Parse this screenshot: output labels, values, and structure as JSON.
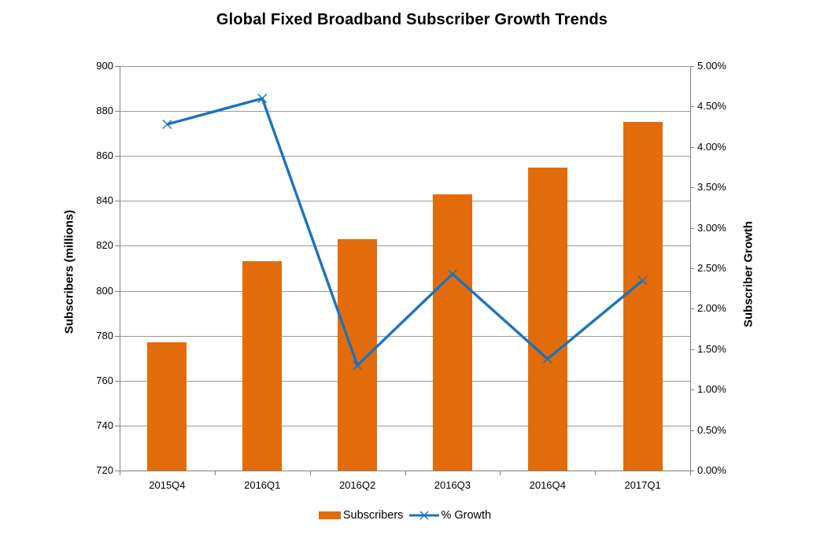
{
  "chart": {
    "title": "Global Fixed Broadband Subscriber Growth Trends"
  },
  "chart_data": {
    "type": "combo-bar-line",
    "title": "Global Fixed Broadband Subscriber Growth Trends",
    "categories": [
      "2015Q4",
      "2016Q1",
      "2016Q2",
      "2016Q3",
      "2016Q4",
      "2017Q1"
    ],
    "series": [
      {
        "name": "Subscribers",
        "type": "bar",
        "axis": "left",
        "values": [
          777,
          813,
          823,
          843,
          855,
          875
        ],
        "color": "#E36C0A"
      },
      {
        "name": "% Growth",
        "type": "line",
        "axis": "right",
        "marker": "x",
        "values": [
          4.28,
          4.6,
          1.3,
          2.43,
          1.38,
          2.35
        ],
        "color": "#1B73BE"
      }
    ],
    "left_axis": {
      "title": "Subscribers (millions)",
      "min": 720,
      "max": 900,
      "step": 20,
      "tick_labels": [
        "900",
        "880",
        "860",
        "840",
        "820",
        "800",
        "780",
        "760",
        "740",
        "720"
      ]
    },
    "right_axis": {
      "title": "Subscriber Growth",
      "min": 0,
      "max": 5,
      "step": 0.5,
      "tick_labels": [
        "5.00%",
        "4.50%",
        "4.00%",
        "3.50%",
        "3.00%",
        "2.50%",
        "2.00%",
        "1.50%",
        "1.00%",
        "0.50%",
        "0.00%"
      ]
    },
    "grid": true,
    "legend_position": "bottom",
    "colors": {
      "bar": "#E36C0A",
      "line": "#1B73BE",
      "gridline": "#9A9A9A",
      "axis": "#808080"
    }
  }
}
